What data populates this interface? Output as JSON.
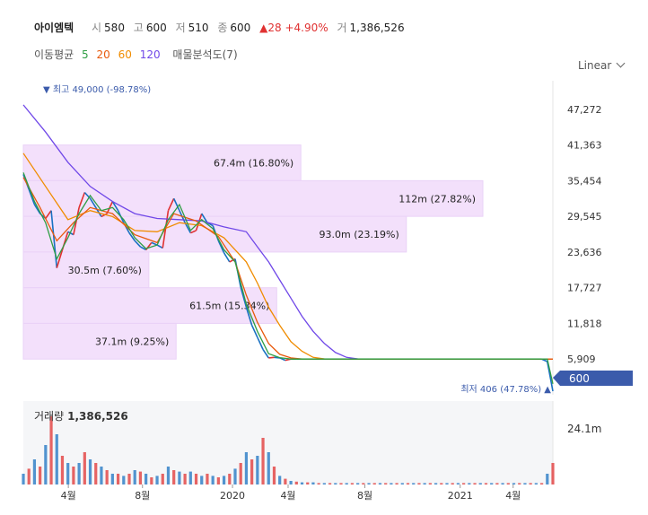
{
  "header": {
    "name": "아이엠텍",
    "open_label": "시",
    "open": "580",
    "high_label": "고",
    "high": "600",
    "low_label": "저",
    "low": "510",
    "close_label": "종",
    "close": "600",
    "change": "▲28 +4.90%",
    "volume_label": "거",
    "volume": "1,386,526"
  },
  "ma_bar": {
    "label": "이동평균",
    "periods": [
      "5",
      "20",
      "60",
      "120"
    ],
    "vp_label": "매물분석도(7)"
  },
  "scale_select": "Linear",
  "colors": {
    "ma5": "#2f9e44",
    "ma20": "#e8590c",
    "ma60": "#f08c00",
    "ma120": "#7048e8",
    "up": "#e03131",
    "down": "#1971c2",
    "band": "#f3e0fb",
    "last_price_bg": "#3b5bab"
  },
  "annotations": {
    "high": "▼ 최고 49,000 (-98.78%)",
    "low": "최저 406 (47.78%) ▲",
    "last_price": "600",
    "volume_label": "거래량",
    "volume_value": "1,386,526"
  },
  "chart_data": {
    "type": "line",
    "y_ticks": [
      "47,272",
      "41,363",
      "35,454",
      "29,545",
      "23,636",
      "17,727",
      "11,818",
      "5,909"
    ],
    "volume_tick": "24.1m",
    "x_ticks": [
      "4월",
      "8월",
      "2020",
      "4월",
      "8월",
      "2021",
      "4월"
    ],
    "ylim": [
      0,
      52000
    ],
    "volume_profile": [
      {
        "label": "67.4m (16.80%)",
        "price_range": [
          35454,
          41363
        ],
        "share": 16.8
      },
      {
        "label": "112m (27.82%)",
        "price_range": [
          29545,
          35454
        ],
        "share": 27.82
      },
      {
        "label": "93.0m (23.19%)",
        "price_range": [
          23636,
          29545
        ],
        "share": 23.19
      },
      {
        "label": "30.5m (7.60%)",
        "price_range": [
          17727,
          23636
        ],
        "share": 7.6
      },
      {
        "label": "61.5m (15.34%)",
        "price_range": [
          11818,
          17727
        ],
        "share": 15.34
      },
      {
        "label": "37.1m (9.25%)",
        "price_range": [
          5909,
          11818
        ],
        "share": 9.25
      }
    ],
    "close_series": [
      [
        0,
        36500
      ],
      [
        1,
        34000
      ],
      [
        2,
        31500
      ],
      [
        3,
        30000
      ],
      [
        4,
        29200
      ],
      [
        5,
        30500
      ],
      [
        6,
        21000
      ],
      [
        7,
        24000
      ],
      [
        8,
        27000
      ],
      [
        9,
        26500
      ],
      [
        10,
        31000
      ],
      [
        11,
        33500
      ],
      [
        12,
        32500
      ],
      [
        13,
        31000
      ],
      [
        14,
        29500
      ],
      [
        15,
        30000
      ],
      [
        16,
        32000
      ],
      [
        17,
        30500
      ],
      [
        18,
        28500
      ],
      [
        19,
        26800
      ],
      [
        20,
        25500
      ],
      [
        21,
        24500
      ],
      [
        22,
        24000
      ],
      [
        23,
        25200
      ],
      [
        24,
        24800
      ],
      [
        25,
        24300
      ],
      [
        26,
        30500
      ],
      [
        27,
        32500
      ],
      [
        28,
        30500
      ],
      [
        29,
        28500
      ],
      [
        30,
        26800
      ],
      [
        31,
        27200
      ],
      [
        32,
        30000
      ],
      [
        33,
        28500
      ],
      [
        34,
        28000
      ],
      [
        35,
        25500
      ],
      [
        36,
        23500
      ],
      [
        37,
        22000
      ],
      [
        38,
        22500
      ],
      [
        39,
        17800
      ],
      [
        40,
        14500
      ],
      [
        41,
        11500
      ],
      [
        42,
        9500
      ],
      [
        43,
        7500
      ],
      [
        44,
        6100
      ],
      [
        45,
        6200
      ],
      [
        46,
        6100
      ],
      [
        47,
        5700
      ],
      [
        48,
        5909
      ],
      [
        49,
        5909
      ],
      [
        50,
        5909
      ],
      [
        51,
        5909
      ],
      [
        52,
        5909
      ],
      [
        53,
        5909
      ],
      [
        54,
        5909
      ],
      [
        55,
        5909
      ],
      [
        56,
        5909
      ],
      [
        57,
        5909
      ],
      [
        58,
        5909
      ],
      [
        59,
        5909
      ],
      [
        60,
        5909
      ],
      [
        61,
        5909
      ],
      [
        62,
        5909
      ],
      [
        63,
        5909
      ],
      [
        64,
        5909
      ],
      [
        65,
        5909
      ],
      [
        66,
        5909
      ],
      [
        67,
        5909
      ],
      [
        68,
        5909
      ],
      [
        69,
        5909
      ],
      [
        70,
        5909
      ],
      [
        71,
        5909
      ],
      [
        72,
        5909
      ],
      [
        73,
        5909
      ],
      [
        74,
        5909
      ],
      [
        75,
        5909
      ],
      [
        76,
        5909
      ],
      [
        77,
        5909
      ],
      [
        78,
        5909
      ],
      [
        79,
        5909
      ],
      [
        80,
        5909
      ],
      [
        81,
        5909
      ],
      [
        82,
        5909
      ],
      [
        83,
        5909
      ],
      [
        84,
        5909
      ],
      [
        85,
        5909
      ],
      [
        86,
        5909
      ],
      [
        87,
        5909
      ],
      [
        88,
        5909
      ],
      [
        89,
        5909
      ],
      [
        90,
        5909
      ],
      [
        91,
        5909
      ],
      [
        92,
        5909
      ],
      [
        93,
        5909
      ],
      [
        94,
        5500
      ],
      [
        95,
        600
      ]
    ],
    "ma120_series": [
      [
        0,
        48000
      ],
      [
        4,
        43500
      ],
      [
        8,
        38500
      ],
      [
        12,
        34500
      ],
      [
        16,
        32000
      ],
      [
        20,
        30000
      ],
      [
        24,
        29200
      ],
      [
        28,
        29000
      ],
      [
        32,
        28800
      ],
      [
        36,
        27800
      ],
      [
        40,
        27000
      ],
      [
        42,
        24500
      ],
      [
        44,
        22000
      ],
      [
        46,
        19000
      ],
      [
        48,
        16000
      ],
      [
        50,
        13000
      ],
      [
        52,
        10500
      ],
      [
        54,
        8500
      ],
      [
        56,
        7000
      ],
      [
        58,
        6200
      ],
      [
        60,
        5950
      ],
      [
        64,
        5909
      ],
      [
        95,
        5909
      ]
    ],
    "ma60_series": [
      [
        0,
        40000
      ],
      [
        4,
        34500
      ],
      [
        8,
        29000
      ],
      [
        12,
        30500
      ],
      [
        16,
        29500
      ],
      [
        20,
        27200
      ],
      [
        24,
        27000
      ],
      [
        28,
        28500
      ],
      [
        32,
        28000
      ],
      [
        36,
        26000
      ],
      [
        40,
        22000
      ],
      [
        42,
        18500
      ],
      [
        44,
        14500
      ],
      [
        46,
        11500
      ],
      [
        48,
        8800
      ],
      [
        50,
        7200
      ],
      [
        52,
        6200
      ],
      [
        54,
        5950
      ],
      [
        56,
        5909
      ],
      [
        95,
        5909
      ]
    ],
    "ma20_series": [
      [
        0,
        36000
      ],
      [
        3,
        31000
      ],
      [
        6,
        25500
      ],
      [
        9,
        28500
      ],
      [
        12,
        31000
      ],
      [
        16,
        30000
      ],
      [
        20,
        26500
      ],
      [
        24,
        25200
      ],
      [
        27,
        30000
      ],
      [
        31,
        28800
      ],
      [
        35,
        26200
      ],
      [
        38,
        22000
      ],
      [
        40,
        16500
      ],
      [
        42,
        12000
      ],
      [
        44,
        8500
      ],
      [
        46,
        6700
      ],
      [
        48,
        6100
      ],
      [
        50,
        5909
      ],
      [
        95,
        5909
      ]
    ],
    "ma5_series": [
      [
        0,
        36800
      ],
      [
        2,
        32000
      ],
      [
        4,
        28500
      ],
      [
        6,
        22500
      ],
      [
        8,
        26000
      ],
      [
        10,
        30000
      ],
      [
        12,
        33000
      ],
      [
        14,
        30500
      ],
      [
        16,
        31000
      ],
      [
        18,
        29000
      ],
      [
        20,
        26000
      ],
      [
        22,
        24200
      ],
      [
        24,
        24800
      ],
      [
        26,
        29000
      ],
      [
        28,
        31500
      ],
      [
        30,
        27200
      ],
      [
        32,
        29000
      ],
      [
        34,
        27500
      ],
      [
        36,
        24000
      ],
      [
        38,
        22000
      ],
      [
        40,
        15000
      ],
      [
        42,
        10500
      ],
      [
        44,
        6800
      ],
      [
        46,
        6150
      ],
      [
        48,
        5909
      ],
      [
        94,
        5909
      ],
      [
        95,
        1800
      ]
    ],
    "volume_bars": [
      [
        0,
        0.15
      ],
      [
        1,
        0.22
      ],
      [
        2,
        0.35
      ],
      [
        3,
        0.25
      ],
      [
        4,
        0.55
      ],
      [
        5,
        0.95
      ],
      [
        6,
        0.7
      ],
      [
        7,
        0.4
      ],
      [
        8,
        0.3
      ],
      [
        9,
        0.25
      ],
      [
        10,
        0.3
      ],
      [
        11,
        0.45
      ],
      [
        12,
        0.35
      ],
      [
        13,
        0.3
      ],
      [
        14,
        0.25
      ],
      [
        15,
        0.2
      ],
      [
        16,
        0.15
      ],
      [
        17,
        0.15
      ],
      [
        18,
        0.12
      ],
      [
        19,
        0.15
      ],
      [
        20,
        0.2
      ],
      [
        21,
        0.18
      ],
      [
        22,
        0.15
      ],
      [
        23,
        0.1
      ],
      [
        24,
        0.12
      ],
      [
        25,
        0.15
      ],
      [
        26,
        0.25
      ],
      [
        27,
        0.2
      ],
      [
        28,
        0.18
      ],
      [
        29,
        0.15
      ],
      [
        30,
        0.18
      ],
      [
        31,
        0.15
      ],
      [
        32,
        0.12
      ],
      [
        33,
        0.15
      ],
      [
        34,
        0.12
      ],
      [
        35,
        0.1
      ],
      [
        36,
        0.12
      ],
      [
        37,
        0.15
      ],
      [
        38,
        0.22
      ],
      [
        39,
        0.3
      ],
      [
        40,
        0.45
      ],
      [
        41,
        0.35
      ],
      [
        42,
        0.4
      ],
      [
        43,
        0.65
      ],
      [
        44,
        0.45
      ],
      [
        45,
        0.25
      ],
      [
        46,
        0.12
      ],
      [
        47,
        0.08
      ],
      [
        48,
        0.05
      ],
      [
        49,
        0.04
      ],
      [
        50,
        0.03
      ],
      [
        51,
        0.03
      ],
      [
        52,
        0.03
      ],
      [
        53,
        0.02
      ],
      [
        54,
        0.02
      ],
      [
        55,
        0.02
      ],
      [
        56,
        0.02
      ],
      [
        57,
        0.02
      ],
      [
        58,
        0.02
      ],
      [
        59,
        0.02
      ],
      [
        60,
        0.02
      ],
      [
        61,
        0.02
      ],
      [
        62,
        0.02
      ],
      [
        63,
        0.02
      ],
      [
        64,
        0.02
      ],
      [
        65,
        0.02
      ],
      [
        66,
        0.02
      ],
      [
        67,
        0.02
      ],
      [
        68,
        0.02
      ],
      [
        69,
        0.02
      ],
      [
        70,
        0.02
      ],
      [
        71,
        0.02
      ],
      [
        72,
        0.02
      ],
      [
        73,
        0.02
      ],
      [
        74,
        0.02
      ],
      [
        75,
        0.02
      ],
      [
        76,
        0.02
      ],
      [
        77,
        0.02
      ],
      [
        78,
        0.02
      ],
      [
        79,
        0.02
      ],
      [
        80,
        0.02
      ],
      [
        81,
        0.02
      ],
      [
        82,
        0.02
      ],
      [
        83,
        0.02
      ],
      [
        84,
        0.02
      ],
      [
        85,
        0.02
      ],
      [
        86,
        0.02
      ],
      [
        87,
        0.02
      ],
      [
        88,
        0.02
      ],
      [
        89,
        0.02
      ],
      [
        90,
        0.02
      ],
      [
        91,
        0.02
      ],
      [
        92,
        0.02
      ],
      [
        93,
        0.02
      ],
      [
        94,
        0.15
      ],
      [
        95,
        0.3
      ]
    ]
  }
}
